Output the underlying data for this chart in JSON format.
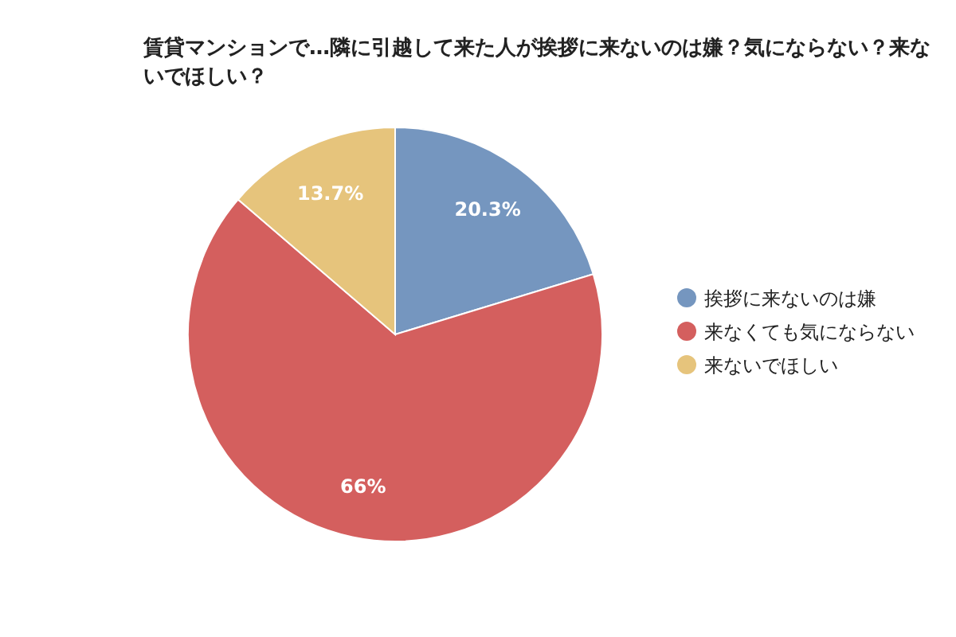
{
  "chart_data": {
    "type": "pie",
    "title": "賃貸マンションで…隣に引越して来た人が挨拶に来ないのは嫌？気にならない？来ないでほしい？",
    "categories": [
      "挨拶に来ないのは嫌",
      "来なくても気にならない",
      "来ないでほしい"
    ],
    "values": [
      20.3,
      66,
      13.7
    ],
    "colors": [
      "#7596bf",
      "#d45f5e",
      "#e6c47c"
    ],
    "value_labels": [
      "20.3%",
      "66%",
      "13.7%"
    ],
    "legend": "right"
  }
}
